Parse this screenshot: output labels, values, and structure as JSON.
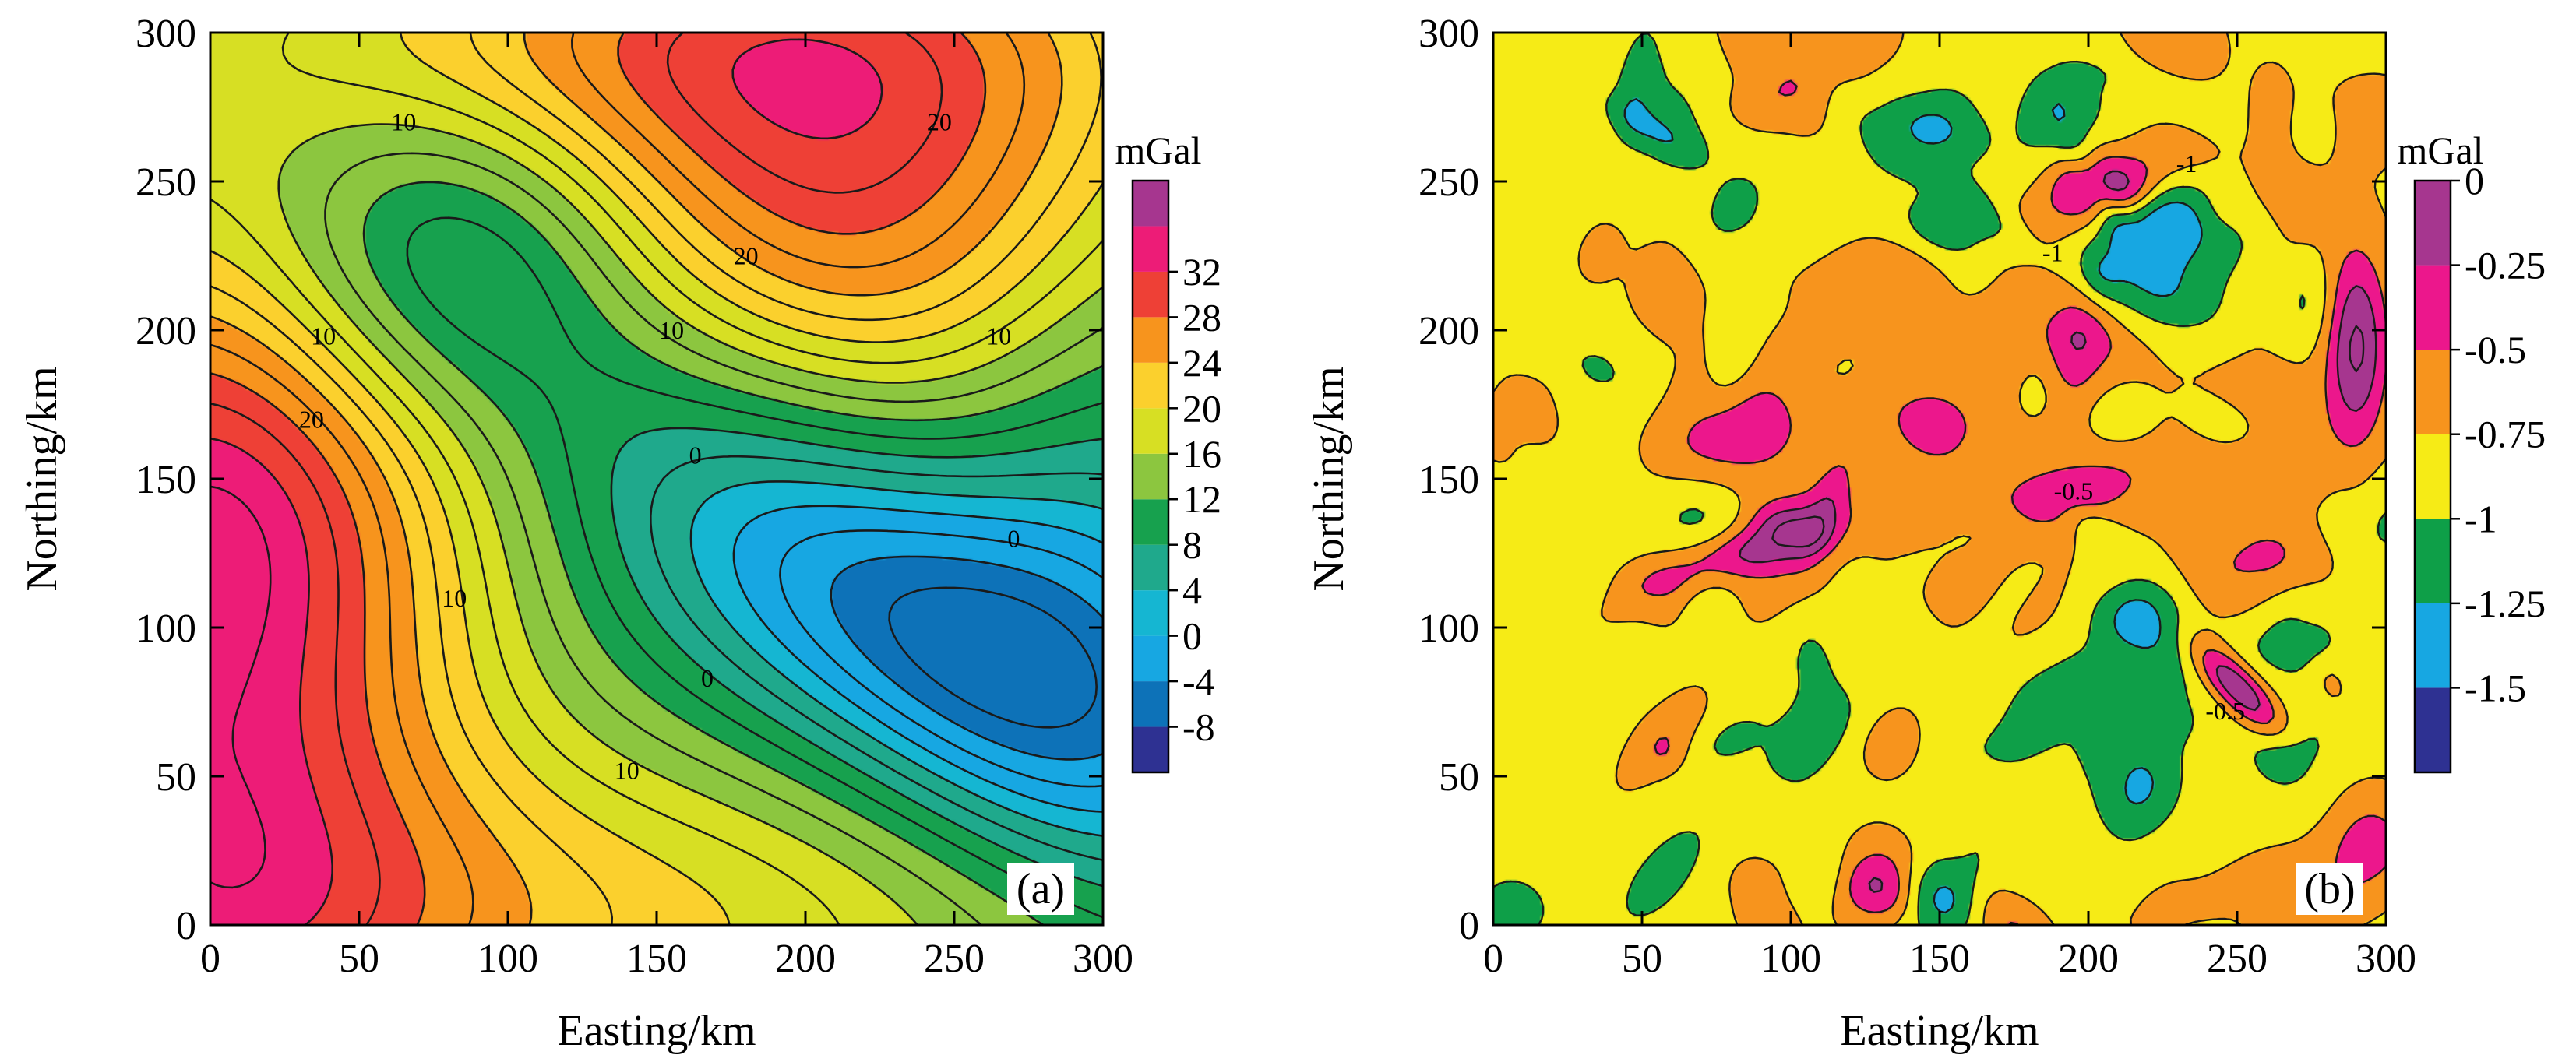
{
  "chart_data": [
    {
      "id": "panel-a",
      "type": "heatmap",
      "subtype": "filled-contour",
      "panel_label": "(a)",
      "xlabel": "Easting/km",
      "ylabel": "Northing/km",
      "xlim": [
        0,
        300
      ],
      "ylim": [
        0,
        300
      ],
      "xticks": [
        "0",
        "50",
        "100",
        "150",
        "200",
        "250",
        "300"
      ],
      "yticks": [
        "0",
        "50",
        "100",
        "150",
        "200",
        "250",
        "300"
      ],
      "colorbar": {
        "unit": "mGal",
        "levels": [
          -8,
          -4,
          0,
          4,
          8,
          12,
          16,
          20,
          24,
          28,
          32
        ],
        "tick_labels": [
          "-8",
          "-4",
          "0",
          "4",
          "8",
          "12",
          "16",
          "20",
          "24",
          "28",
          "32"
        ],
        "colors": [
          "#2e3192",
          "#0d72b8",
          "#17a7e2",
          "#15b6d2",
          "#1fa98c",
          "#17a14e",
          "#8cc63f",
          "#d7df23",
          "#fbd02d",
          "#f7941d",
          "#ee4036",
          "#ed1c77",
          "#a6368f"
        ]
      },
      "contour_labels": [
        {
          "text": "10",
          "x": 65,
          "y": 270
        },
        {
          "text": "20",
          "x": 245,
          "y": 270
        },
        {
          "text": "20",
          "x": 180,
          "y": 225
        },
        {
          "text": "10",
          "x": 155,
          "y": 200
        },
        {
          "text": "10",
          "x": 38,
          "y": 198
        },
        {
          "text": "10",
          "x": 265,
          "y": 198
        },
        {
          "text": "20",
          "x": 34,
          "y": 170
        },
        {
          "text": "0",
          "x": 163,
          "y": 158
        },
        {
          "text": "0",
          "x": 270,
          "y": 130
        },
        {
          "text": "10",
          "x": 82,
          "y": 110
        },
        {
          "text": "0",
          "x": 167,
          "y": 83
        },
        {
          "text": "10",
          "x": 140,
          "y": 52
        }
      ]
    },
    {
      "id": "panel-b",
      "type": "heatmap",
      "subtype": "filled-contour",
      "panel_label": "(b)",
      "xlabel": "Easting/km",
      "ylabel": "Northing/km",
      "xlim": [
        0,
        300
      ],
      "ylim": [
        0,
        300
      ],
      "xticks": [
        "0",
        "50",
        "100",
        "150",
        "200",
        "250",
        "300"
      ],
      "yticks": [
        "0",
        "50",
        "100",
        "150",
        "200",
        "250",
        "300"
      ],
      "colorbar": {
        "unit": "mGal",
        "levels": [
          -1.5,
          -1.25,
          -1,
          -0.75,
          -0.5,
          -0.25,
          0
        ],
        "tick_labels": [
          "-1.5",
          "-1.25",
          "-1",
          "-0.75",
          "-0.5",
          "-0.25",
          "0"
        ],
        "colors": [
          "#2e3192",
          "#17a7e2",
          "#0e9f48",
          "#f6eb16",
          "#f7941d",
          "#ec178c",
          "#a6368f"
        ]
      },
      "contour_labels": [
        {
          "text": "-1",
          "x": 188,
          "y": 226
        },
        {
          "text": "-1",
          "x": 233,
          "y": 256
        },
        {
          "text": "-0.5",
          "x": 195,
          "y": 146
        },
        {
          "text": "-0.5",
          "x": 246,
          "y": 72
        }
      ]
    }
  ]
}
